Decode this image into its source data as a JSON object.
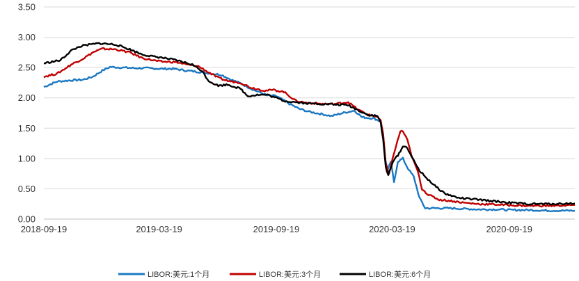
{
  "chart_data": {
    "type": "line",
    "title": "",
    "xlabel": "",
    "ylabel": "",
    "ylim": [
      0,
      3.5
    ],
    "y_ticks": [
      "0.00",
      "0.50",
      "1.00",
      "1.50",
      "2.00",
      "2.50",
      "3.00",
      "3.50"
    ],
    "x_range": [
      "2018-09-19",
      "2020-12-31"
    ],
    "x_tick_labels": [
      "2018-09-19",
      "2019-03-19",
      "2019-09-19",
      "2020-03-19",
      "2020-09-19"
    ],
    "grid": "horizontal",
    "legend_position": "bottom",
    "series": [
      {
        "name": "LIBOR:美元:1个月",
        "color": "#1a78c2",
        "points": [
          [
            "2018-09-19",
            2.18
          ],
          [
            "2018-10-10",
            2.27
          ],
          [
            "2018-11-01",
            2.29
          ],
          [
            "2018-11-20",
            2.3
          ],
          [
            "2018-12-05",
            2.35
          ],
          [
            "2018-12-20",
            2.45
          ],
          [
            "2019-01-01",
            2.51
          ],
          [
            "2019-01-20",
            2.5
          ],
          [
            "2019-02-10",
            2.49
          ],
          [
            "2019-03-01",
            2.49
          ],
          [
            "2019-03-20",
            2.48
          ],
          [
            "2019-04-10",
            2.48
          ],
          [
            "2019-05-01",
            2.45
          ],
          [
            "2019-05-20",
            2.43
          ],
          [
            "2019-06-10",
            2.4
          ],
          [
            "2019-06-25",
            2.38
          ],
          [
            "2019-07-10",
            2.3
          ],
          [
            "2019-07-25",
            2.24
          ],
          [
            "2019-08-15",
            2.13
          ],
          [
            "2019-09-05",
            2.04
          ],
          [
            "2019-09-19",
            2.03
          ],
          [
            "2019-10-10",
            1.9
          ],
          [
            "2019-10-25",
            1.82
          ],
          [
            "2019-11-10",
            1.77
          ],
          [
            "2019-12-01",
            1.73
          ],
          [
            "2019-12-15",
            1.7
          ],
          [
            "2020-01-01",
            1.75
          ],
          [
            "2020-01-20",
            1.79
          ],
          [
            "2020-02-01",
            1.68
          ],
          [
            "2020-02-20",
            1.66
          ],
          [
            "2020-03-01",
            1.61
          ],
          [
            "2020-03-05",
            1.4
          ],
          [
            "2020-03-08",
            1.0
          ],
          [
            "2020-03-12",
            0.8
          ],
          [
            "2020-03-17",
            0.95
          ],
          [
            "2020-03-22",
            0.6
          ],
          [
            "2020-03-28",
            0.95
          ],
          [
            "2020-04-05",
            1.0
          ],
          [
            "2020-04-12",
            0.85
          ],
          [
            "2020-04-22",
            0.7
          ],
          [
            "2020-05-01",
            0.35
          ],
          [
            "2020-05-10",
            0.18
          ],
          [
            "2020-06-01",
            0.18
          ],
          [
            "2020-06-20",
            0.18
          ],
          [
            "2020-07-10",
            0.17
          ],
          [
            "2020-08-01",
            0.16
          ],
          [
            "2020-09-01",
            0.16
          ],
          [
            "2020-09-19",
            0.15
          ],
          [
            "2020-10-20",
            0.15
          ],
          [
            "2020-11-20",
            0.14
          ],
          [
            "2020-12-31",
            0.14
          ]
        ]
      },
      {
        "name": "LIBOR:美元:3个月",
        "color": "#c00000",
        "points": [
          [
            "2018-09-19",
            2.35
          ],
          [
            "2018-10-10",
            2.4
          ],
          [
            "2018-11-01",
            2.55
          ],
          [
            "2018-11-20",
            2.65
          ],
          [
            "2018-12-05",
            2.75
          ],
          [
            "2018-12-20",
            2.81
          ],
          [
            "2019-01-10",
            2.8
          ],
          [
            "2019-02-01",
            2.75
          ],
          [
            "2019-02-20",
            2.66
          ],
          [
            "2019-03-10",
            2.62
          ],
          [
            "2019-03-20",
            2.6
          ],
          [
            "2019-04-15",
            2.59
          ],
          [
            "2019-05-01",
            2.55
          ],
          [
            "2019-05-20",
            2.52
          ],
          [
            "2019-06-05",
            2.42
          ],
          [
            "2019-06-20",
            2.33
          ],
          [
            "2019-07-05",
            2.28
          ],
          [
            "2019-07-25",
            2.25
          ],
          [
            "2019-08-10",
            2.17
          ],
          [
            "2019-09-01",
            2.12
          ],
          [
            "2019-09-15",
            2.13
          ],
          [
            "2019-10-01",
            2.1
          ],
          [
            "2019-10-20",
            1.95
          ],
          [
            "2019-11-05",
            1.92
          ],
          [
            "2019-12-01",
            1.9
          ],
          [
            "2019-12-20",
            1.9
          ],
          [
            "2020-01-10",
            1.93
          ],
          [
            "2020-01-25",
            1.81
          ],
          [
            "2020-02-10",
            1.72
          ],
          [
            "2020-02-25",
            1.69
          ],
          [
            "2020-03-01",
            1.62
          ],
          [
            "2020-03-05",
            1.4
          ],
          [
            "2020-03-09",
            0.9
          ],
          [
            "2020-03-14",
            0.75
          ],
          [
            "2020-03-20",
            1.0
          ],
          [
            "2020-03-25",
            1.2
          ],
          [
            "2020-04-01",
            1.45
          ],
          [
            "2020-04-05",
            1.45
          ],
          [
            "2020-04-12",
            1.3
          ],
          [
            "2020-04-20",
            1.0
          ],
          [
            "2020-04-28",
            0.8
          ],
          [
            "2020-05-05",
            0.5
          ],
          [
            "2020-05-15",
            0.4
          ],
          [
            "2020-06-01",
            0.32
          ],
          [
            "2020-06-20",
            0.3
          ],
          [
            "2020-07-10",
            0.27
          ],
          [
            "2020-08-01",
            0.25
          ],
          [
            "2020-09-01",
            0.24
          ],
          [
            "2020-09-19",
            0.23
          ],
          [
            "2020-10-20",
            0.22
          ],
          [
            "2020-11-20",
            0.22
          ],
          [
            "2020-12-31",
            0.23
          ]
        ]
      },
      {
        "name": "LIBOR:美元:6个月",
        "color": "#000000",
        "points": [
          [
            "2018-09-19",
            2.57
          ],
          [
            "2018-10-15",
            2.62
          ],
          [
            "2018-11-01",
            2.78
          ],
          [
            "2018-11-15",
            2.85
          ],
          [
            "2018-12-01",
            2.88
          ],
          [
            "2018-12-15",
            2.9
          ],
          [
            "2019-01-10",
            2.88
          ],
          [
            "2019-02-01",
            2.8
          ],
          [
            "2019-02-20",
            2.72
          ],
          [
            "2019-03-10",
            2.68
          ],
          [
            "2019-03-20",
            2.67
          ],
          [
            "2019-04-15",
            2.62
          ],
          [
            "2019-05-10",
            2.55
          ],
          [
            "2019-05-25",
            2.45
          ],
          [
            "2019-06-05",
            2.28
          ],
          [
            "2019-06-20",
            2.2
          ],
          [
            "2019-07-05",
            2.22
          ],
          [
            "2019-07-25",
            2.15
          ],
          [
            "2019-08-05",
            2.03
          ],
          [
            "2019-08-20",
            2.05
          ],
          [
            "2019-09-05",
            2.05
          ],
          [
            "2019-09-19",
            2.0
          ],
          [
            "2019-10-01",
            1.95
          ],
          [
            "2019-10-20",
            1.93
          ],
          [
            "2019-11-05",
            1.91
          ],
          [
            "2019-12-01",
            1.9
          ],
          [
            "2019-12-20",
            1.89
          ],
          [
            "2020-01-10",
            1.88
          ],
          [
            "2020-01-25",
            1.8
          ],
          [
            "2020-02-10",
            1.72
          ],
          [
            "2020-02-25",
            1.7
          ],
          [
            "2020-03-01",
            1.6
          ],
          [
            "2020-03-05",
            1.3
          ],
          [
            "2020-03-09",
            0.85
          ],
          [
            "2020-03-13",
            0.72
          ],
          [
            "2020-03-20",
            0.95
          ],
          [
            "2020-03-28",
            1.05
          ],
          [
            "2020-04-05",
            1.2
          ],
          [
            "2020-04-12",
            1.18
          ],
          [
            "2020-04-20",
            1.0
          ],
          [
            "2020-05-01",
            0.8
          ],
          [
            "2020-05-10",
            0.7
          ],
          [
            "2020-05-25",
            0.55
          ],
          [
            "2020-06-10",
            0.42
          ],
          [
            "2020-07-01",
            0.35
          ],
          [
            "2020-08-01",
            0.32
          ],
          [
            "2020-09-01",
            0.29
          ],
          [
            "2020-09-19",
            0.27
          ],
          [
            "2020-10-20",
            0.25
          ],
          [
            "2020-11-20",
            0.25
          ],
          [
            "2020-12-31",
            0.26
          ]
        ]
      }
    ]
  }
}
